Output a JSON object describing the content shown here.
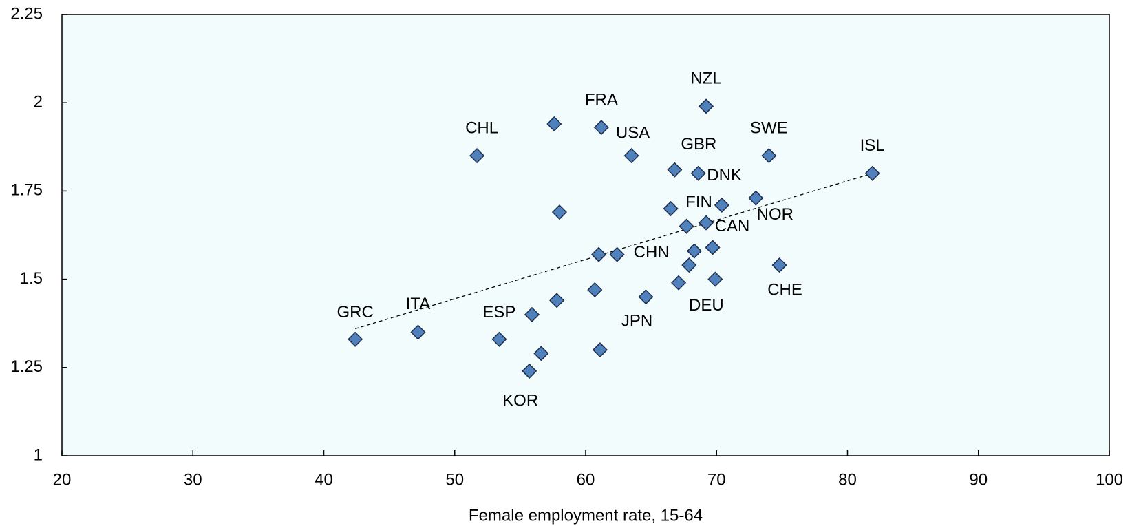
{
  "chart_data": {
    "type": "scatter",
    "x_label": "Female employment rate, 15-64",
    "xlim": [
      20,
      100
    ],
    "xticks": [
      20,
      30,
      40,
      50,
      60,
      70,
      80,
      90,
      100
    ],
    "ylim": [
      1,
      2.25
    ],
    "yticks": [
      1,
      1.25,
      1.5,
      1.75,
      2,
      2.25
    ],
    "color": "#4f81bd",
    "x": [
      42.4,
      47.2,
      53.4,
      55.7,
      51.7,
      61.2,
      63.5,
      62.4,
      64.6,
      66.8,
      68.6,
      67.7,
      69.2,
      69.2,
      73.0,
      74.0,
      69.9,
      74.8,
      81.9,
      55.9,
      56.6,
      57.6,
      58.0,
      57.8,
      61.0,
      60.7,
      61.1,
      66.5,
      70.4,
      69.7,
      68.3,
      67.9,
      67.1
    ],
    "y": [
      1.33,
      1.35,
      1.33,
      1.24,
      1.85,
      1.93,
      1.85,
      1.57,
      1.45,
      1.81,
      1.8,
      1.65,
      1.66,
      1.99,
      1.73,
      1.85,
      1.5,
      1.54,
      1.8,
      1.4,
      1.29,
      1.94,
      1.69,
      1.44,
      1.57,
      1.47,
      1.3,
      1.7,
      1.71,
      1.59,
      1.58,
      1.54,
      1.49
    ],
    "labels": [
      "GRC",
      "ITA",
      "ESP",
      "KOR",
      "CHL",
      "FRA",
      "USA",
      "CHN",
      "JPN",
      "GBR",
      "DNK",
      "FIN",
      "CAN",
      "NZL",
      "NOR",
      "SWE",
      "DEU",
      "CHE",
      "ISL",
      null,
      null,
      null,
      null,
      null,
      null,
      null,
      null,
      null,
      null,
      null,
      null,
      null,
      null
    ],
    "trendline": {
      "x": [
        42.4,
        81.9
      ],
      "y": [
        1.36,
        1.8
      ]
    }
  }
}
